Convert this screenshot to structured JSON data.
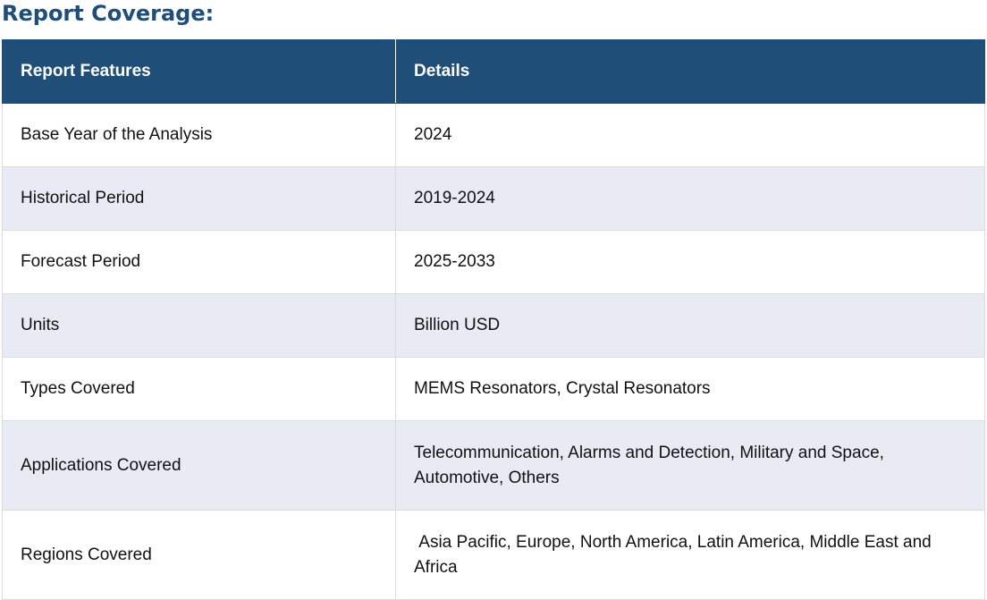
{
  "heading": "Report Coverage:",
  "table": {
    "headers": [
      "Report Features",
      "Details"
    ],
    "rows": [
      {
        "feature": "Base Year of the Analysis",
        "details": "2024"
      },
      {
        "feature": "Historical Period",
        "details": "2019-2024"
      },
      {
        "feature": "Forecast Period",
        "details": "2025-2033"
      },
      {
        "feature": "Units",
        "details": "Billion USD"
      },
      {
        "feature": "Types Covered",
        "details": "MEMS Resonators, Crystal Resonators"
      },
      {
        "feature": "Applications Covered",
        "details": "Telecommunication, Alarms and Detection, Military and Space, Automotive, Others"
      },
      {
        "feature": "Regions Covered",
        "details": " Asia Pacific, Europe, North America, Latin America, Middle East and Africa"
      }
    ]
  },
  "colors": {
    "header_bg": "#1f4e79",
    "heading_text": "#1f4e79",
    "alt_row_bg": "#e8eaf4"
  }
}
